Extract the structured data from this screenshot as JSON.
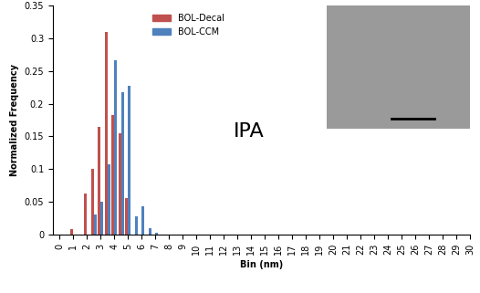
{
  "chart_data": {
    "type": "bar",
    "annotation": "IPA",
    "x_label": "Bin (nm)",
    "y_label": "Normalized Frequency",
    "x": [
      1.0,
      1.5,
      2.0,
      2.5,
      3.0,
      3.5,
      4.0,
      4.5,
      5.0,
      5.5,
      6.0,
      6.5,
      7.0
    ],
    "series": [
      {
        "name": "BOL-Decal",
        "color": "#C0504D",
        "values": [
          0.008,
          0,
          0.063,
          0.1,
          0.165,
          0.31,
          0.183,
          0.155,
          0.055,
          0,
          0,
          0,
          0
        ]
      },
      {
        "name": "BOL-CCM",
        "color": "#4F81BD",
        "values": [
          0,
          0,
          0,
          0.03,
          0.05,
          0.108,
          0.267,
          0.218,
          0.227,
          0.027,
          0.043,
          0.01,
          0.003
        ]
      }
    ],
    "xlim": [
      -0.5,
      30
    ],
    "xticks": [
      0,
      1,
      2,
      3,
      4,
      5,
      6,
      7,
      8,
      9,
      10,
      11,
      12,
      13,
      14,
      15,
      16,
      17,
      18,
      19,
      20,
      21,
      22,
      23,
      24,
      25,
      26,
      27,
      28,
      29,
      30
    ],
    "ylim": [
      0,
      0.35
    ],
    "yticks": [
      0,
      0.05,
      0.1,
      0.15,
      0.2,
      0.25,
      0.3,
      0.35
    ],
    "grid": false,
    "legend": "upper left"
  }
}
